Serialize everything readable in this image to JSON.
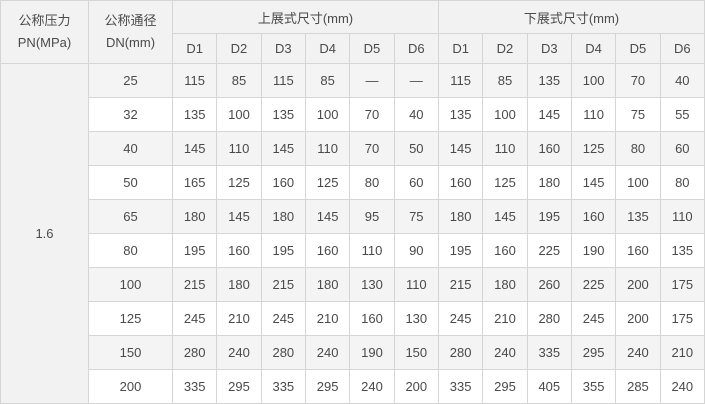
{
  "table": {
    "header": {
      "pressure_label": "公称压力",
      "pressure_unit": "PN(MPa)",
      "diameter_label": "公称通径",
      "diameter_unit": "DN(mm)",
      "upper_group": "上展式尺寸(mm)",
      "lower_group": "下展式尺寸(mm)",
      "dim_columns": [
        "D1",
        "D2",
        "D3",
        "D4",
        "D5",
        "D6"
      ]
    },
    "pressure_value": "1.6",
    "rows": [
      {
        "dn": "25",
        "upper": [
          "115",
          "85",
          "115",
          "85",
          "—",
          "—"
        ],
        "lower": [
          "115",
          "85",
          "135",
          "100",
          "70",
          "40"
        ]
      },
      {
        "dn": "32",
        "upper": [
          "135",
          "100",
          "135",
          "100",
          "70",
          "40"
        ],
        "lower": [
          "135",
          "100",
          "145",
          "110",
          "75",
          "55"
        ]
      },
      {
        "dn": "40",
        "upper": [
          "145",
          "110",
          "145",
          "110",
          "70",
          "50"
        ],
        "lower": [
          "145",
          "110",
          "160",
          "125",
          "80",
          "60"
        ]
      },
      {
        "dn": "50",
        "upper": [
          "165",
          "125",
          "160",
          "125",
          "80",
          "60"
        ],
        "lower": [
          "160",
          "125",
          "180",
          "145",
          "100",
          "80"
        ]
      },
      {
        "dn": "65",
        "upper": [
          "180",
          "145",
          "180",
          "145",
          "95",
          "75"
        ],
        "lower": [
          "180",
          "145",
          "195",
          "160",
          "135",
          "110"
        ]
      },
      {
        "dn": "80",
        "upper": [
          "195",
          "160",
          "195",
          "160",
          "110",
          "90"
        ],
        "lower": [
          "195",
          "160",
          "225",
          "190",
          "160",
          "135"
        ]
      },
      {
        "dn": "100",
        "upper": [
          "215",
          "180",
          "215",
          "180",
          "130",
          "110"
        ],
        "lower": [
          "215",
          "180",
          "260",
          "225",
          "200",
          "175"
        ]
      },
      {
        "dn": "125",
        "upper": [
          "245",
          "210",
          "245",
          "210",
          "160",
          "130"
        ],
        "lower": [
          "245",
          "210",
          "280",
          "245",
          "200",
          "175"
        ]
      },
      {
        "dn": "150",
        "upper": [
          "280",
          "240",
          "280",
          "240",
          "190",
          "150"
        ],
        "lower": [
          "280",
          "240",
          "335",
          "295",
          "240",
          "210"
        ]
      },
      {
        "dn": "200",
        "upper": [
          "335",
          "295",
          "335",
          "295",
          "240",
          "200"
        ],
        "lower": [
          "335",
          "295",
          "405",
          "355",
          "285",
          "240"
        ]
      }
    ],
    "colors": {
      "header_bg": "#f2f2f2",
      "stripe_bg": "#f4f4f4",
      "row_bg": "#ffffff",
      "border_inner": "#d5d5d5",
      "border_outer": "#a8a8a8",
      "text": "#4a4a4a"
    }
  }
}
